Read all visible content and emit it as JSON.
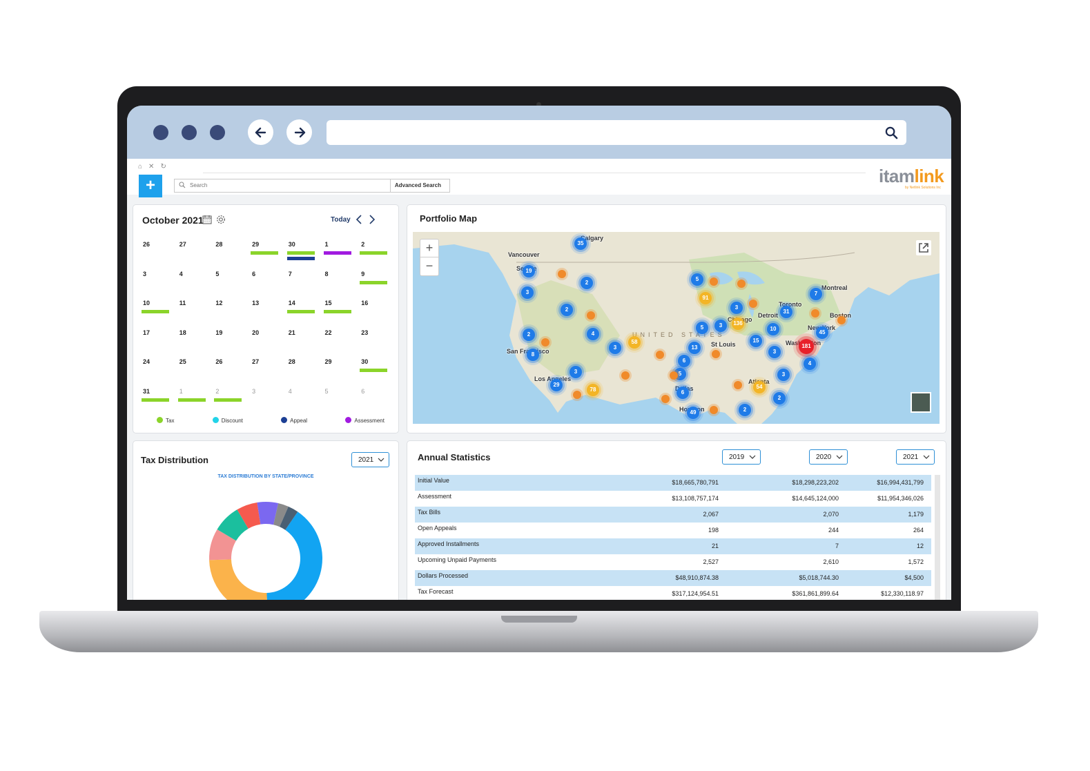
{
  "header": {
    "search_placeholder": "Search",
    "advanced_search_label": "Advanced Search",
    "logo_primary": "itam",
    "logo_secondary": "link",
    "logo_tagline": "by Netlink Solutions Inc"
  },
  "calendar": {
    "title": "October 2021",
    "today_label": "Today",
    "weeks": [
      [
        {
          "d": "26"
        },
        {
          "d": "27"
        },
        {
          "d": "28"
        },
        {
          "d": "29",
          "bars": [
            "tax"
          ]
        },
        {
          "d": "30",
          "bars": [
            "tax",
            "appeal"
          ]
        },
        {
          "d": "1",
          "bars": [
            "assessment"
          ]
        },
        {
          "d": "2",
          "bars": [
            "tax"
          ]
        }
      ],
      [
        {
          "d": "3"
        },
        {
          "d": "4"
        },
        {
          "d": "5"
        },
        {
          "d": "6"
        },
        {
          "d": "7"
        },
        {
          "d": "8"
        },
        {
          "d": "9",
          "bars": [
            "tax"
          ]
        }
      ],
      [
        {
          "d": "10",
          "bars": [
            "tax"
          ]
        },
        {
          "d": "11"
        },
        {
          "d": "12"
        },
        {
          "d": "13"
        },
        {
          "d": "14",
          "bars": [
            "tax"
          ]
        },
        {
          "d": "15",
          "bars": [
            "tax"
          ]
        },
        {
          "d": "16"
        }
      ],
      [
        {
          "d": "17"
        },
        {
          "d": "18"
        },
        {
          "d": "19"
        },
        {
          "d": "20"
        },
        {
          "d": "21"
        },
        {
          "d": "22"
        },
        {
          "d": "23"
        }
      ],
      [
        {
          "d": "24"
        },
        {
          "d": "25"
        },
        {
          "d": "26"
        },
        {
          "d": "27"
        },
        {
          "d": "28"
        },
        {
          "d": "29"
        },
        {
          "d": "30",
          "bars": [
            "tax"
          ]
        }
      ],
      [
        {
          "d": "31",
          "bars": [
            "tax"
          ]
        },
        {
          "d": "1",
          "other": true,
          "bars": [
            "tax"
          ]
        },
        {
          "d": "2",
          "other": true,
          "bars": [
            "tax"
          ]
        },
        {
          "d": "3",
          "other": true
        },
        {
          "d": "4",
          "other": true
        },
        {
          "d": "5",
          "other": true
        },
        {
          "d": "6",
          "other": true
        }
      ]
    ],
    "legend": [
      {
        "key": "tax",
        "label": "Tax",
        "color": "#8bd42a"
      },
      {
        "key": "discount",
        "label": "Discount",
        "color": "#22d3e8"
      },
      {
        "key": "appeal",
        "label": "Appeal",
        "color": "#1c3f94"
      },
      {
        "key": "assessment",
        "label": "Assessment",
        "color": "#a11be0"
      }
    ]
  },
  "map": {
    "title": "Portfolio Map",
    "country_label": "UNITED STATES",
    "cities": [
      {
        "name": "Calgary",
        "x": 243,
        "y": 4
      },
      {
        "name": "Vancouver",
        "x": 138,
        "y": 28
      },
      {
        "name": "Seattle",
        "x": 150,
        "y": 48
      },
      {
        "name": "San Francisco",
        "x": 136,
        "y": 168
      },
      {
        "name": "Los Angeles",
        "x": 176,
        "y": 208
      },
      {
        "name": "Chicago",
        "x": 456,
        "y": 122
      },
      {
        "name": "Detroit",
        "x": 500,
        "y": 116
      },
      {
        "name": "Toronto",
        "x": 530,
        "y": 100
      },
      {
        "name": "Montreal",
        "x": 592,
        "y": 76
      },
      {
        "name": "Boston",
        "x": 604,
        "y": 116
      },
      {
        "name": "New York",
        "x": 572,
        "y": 134
      },
      {
        "name": "Washington",
        "x": 540,
        "y": 156
      },
      {
        "name": "St Louis",
        "x": 432,
        "y": 158
      },
      {
        "name": "Atlanta",
        "x": 486,
        "y": 212
      },
      {
        "name": "Dallas",
        "x": 380,
        "y": 222
      },
      {
        "name": "Houston",
        "x": 386,
        "y": 252
      }
    ],
    "clusters": [
      {
        "t": "blue",
        "n": "35",
        "x": 243,
        "y": 17
      },
      {
        "t": "blue",
        "n": "19",
        "x": 168,
        "y": 57
      },
      {
        "t": "orange",
        "n": "",
        "x": 216,
        "y": 61
      },
      {
        "t": "blue",
        "n": "2",
        "x": 252,
        "y": 74
      },
      {
        "t": "blue",
        "n": "3",
        "x": 166,
        "y": 88
      },
      {
        "t": "blue",
        "n": "2",
        "x": 223,
        "y": 113
      },
      {
        "t": "orange",
        "n": "",
        "x": 258,
        "y": 121
      },
      {
        "t": "blue",
        "n": "4",
        "x": 261,
        "y": 148
      },
      {
        "t": "blue",
        "n": "2",
        "x": 168,
        "y": 149
      },
      {
        "t": "orange",
        "n": "",
        "x": 192,
        "y": 160
      },
      {
        "t": "blue",
        "n": "8",
        "x": 174,
        "y": 178
      },
      {
        "t": "blue",
        "n": "3",
        "x": 293,
        "y": 168
      },
      {
        "t": "yellow",
        "n": "58",
        "x": 321,
        "y": 160
      },
      {
        "t": "orange",
        "n": "",
        "x": 358,
        "y": 178
      },
      {
        "t": "blue",
        "n": "3",
        "x": 236,
        "y": 203
      },
      {
        "t": "orange",
        "n": "",
        "x": 308,
        "y": 208
      },
      {
        "t": "blue",
        "n": "29",
        "x": 208,
        "y": 222
      },
      {
        "t": "yellow",
        "n": "78",
        "x": 261,
        "y": 229
      },
      {
        "t": "orange",
        "n": "",
        "x": 238,
        "y": 236
      },
      {
        "t": "blue",
        "n": "5",
        "x": 412,
        "y": 69
      },
      {
        "t": "orange",
        "n": "",
        "x": 436,
        "y": 72
      },
      {
        "t": "orange",
        "n": "",
        "x": 476,
        "y": 75
      },
      {
        "t": "yellow",
        "n": "91",
        "x": 424,
        "y": 96
      },
      {
        "t": "blue",
        "n": "3",
        "x": 469,
        "y": 110
      },
      {
        "t": "orange",
        "n": "",
        "x": 493,
        "y": 104
      },
      {
        "t": "blue",
        "n": "5",
        "x": 419,
        "y": 139
      },
      {
        "t": "blue",
        "n": "3",
        "x": 446,
        "y": 136
      },
      {
        "t": "yellow",
        "n": "136",
        "x": 471,
        "y": 133
      },
      {
        "t": "blue",
        "n": "10",
        "x": 522,
        "y": 141
      },
      {
        "t": "blue",
        "n": "31",
        "x": 541,
        "y": 116
      },
      {
        "t": "blue",
        "n": "7",
        "x": 584,
        "y": 90
      },
      {
        "t": "orange",
        "n": "",
        "x": 583,
        "y": 118
      },
      {
        "t": "orange",
        "n": "",
        "x": 621,
        "y": 128
      },
      {
        "t": "blue",
        "n": "45",
        "x": 593,
        "y": 146
      },
      {
        "t": "blue",
        "n": "15",
        "x": 497,
        "y": 158
      },
      {
        "t": "blue",
        "n": "13",
        "x": 408,
        "y": 168
      },
      {
        "t": "orange",
        "n": "",
        "x": 439,
        "y": 177
      },
      {
        "t": "blue",
        "n": "3",
        "x": 524,
        "y": 174
      },
      {
        "t": "red",
        "n": "181",
        "x": 570,
        "y": 166
      },
      {
        "t": "blue",
        "n": "4",
        "x": 575,
        "y": 191
      },
      {
        "t": "blue",
        "n": "6",
        "x": 393,
        "y": 187
      },
      {
        "t": "blue",
        "n": "5",
        "x": 387,
        "y": 206
      },
      {
        "t": "orange",
        "n": "",
        "x": 378,
        "y": 208
      },
      {
        "t": "blue",
        "n": "3",
        "x": 537,
        "y": 207
      },
      {
        "t": "yellow",
        "n": "54",
        "x": 502,
        "y": 225
      },
      {
        "t": "orange",
        "n": "",
        "x": 471,
        "y": 222
      },
      {
        "t": "blue",
        "n": "6",
        "x": 391,
        "y": 233
      },
      {
        "t": "orange",
        "n": "",
        "x": 366,
        "y": 242
      },
      {
        "t": "blue",
        "n": "2",
        "x": 531,
        "y": 241
      },
      {
        "t": "orange",
        "n": "",
        "x": 436,
        "y": 258
      },
      {
        "t": "blue",
        "n": "49",
        "x": 406,
        "y": 262
      },
      {
        "t": "blue",
        "n": "2",
        "x": 481,
        "y": 258
      }
    ]
  },
  "tax_distribution": {
    "title": "Tax Distribution",
    "year": "2021",
    "subtitle": "TAX DISTRIBUTION BY STATE/PROVINCE",
    "chart_data": {
      "type": "pie",
      "title": "TAX DISTRIBUTION BY STATE/PROVINCE",
      "slices": [
        {
          "value": 40,
          "color": "#12a4f2"
        },
        {
          "value": 25,
          "color": "#fbb34b"
        },
        {
          "value": 9,
          "color": "#f29393"
        },
        {
          "value": 8,
          "color": "#1bbf9e"
        },
        {
          "value": 6,
          "color": "#f55a4e"
        },
        {
          "value": 6,
          "color": "#7b68f0"
        },
        {
          "value": 3,
          "color": "#8a8a8a"
        },
        {
          "value": 3,
          "color": "#4a5f73"
        }
      ]
    }
  },
  "annual_statistics": {
    "title": "Annual Statistics",
    "years": [
      "2019",
      "2020",
      "2021"
    ],
    "rows": [
      {
        "label": "Initial Value",
        "values": [
          "$18,665,780,791",
          "$18,298,223,202",
          "$16,994,431,799"
        ]
      },
      {
        "label": "Assessment",
        "values": [
          "$13,108,757,174",
          "$14,645,124,000",
          "$11,954,346,026"
        ]
      },
      {
        "label": "Tax Bills",
        "values": [
          "2,067",
          "2,070",
          "1,179"
        ]
      },
      {
        "label": "Open Appeals",
        "values": [
          "198",
          "244",
          "264"
        ]
      },
      {
        "label": "Approved Installments",
        "values": [
          "21",
          "7",
          "12"
        ]
      },
      {
        "label": "Upcoming Unpaid Payments",
        "values": [
          "2,527",
          "2,610",
          "1,572"
        ]
      },
      {
        "label": "Dollars Processed",
        "values": [
          "$48,910,874.38",
          "$5,018,744.30",
          "$4,500"
        ]
      },
      {
        "label": "Tax Forecast",
        "values": [
          "$317,124,954.51",
          "$361,861,899.64",
          "$12,330,118.97"
        ]
      }
    ]
  }
}
